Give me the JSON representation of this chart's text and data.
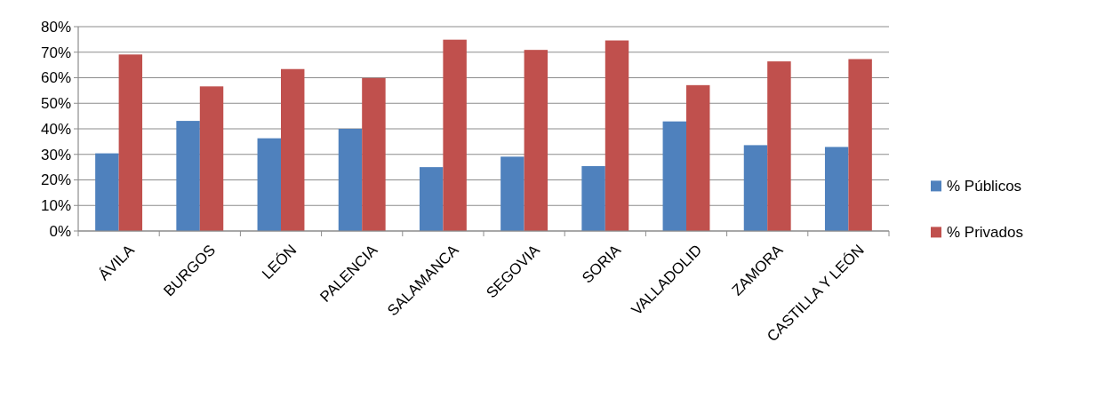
{
  "chart_data": {
    "type": "bar",
    "categories": [
      "ÁVILA",
      "BURGOS",
      "LEÓN",
      "PALENCIA",
      "SALAMANCA",
      "SEGOVIA",
      "SORIA",
      "VALLADOLID",
      "ZAMORA",
      "CASTILLA Y LEÓN"
    ],
    "series": [
      {
        "name": "% Públicos",
        "color": "#4f81bd",
        "values": [
          30.4,
          43.1,
          36.3,
          40.0,
          25.0,
          29.1,
          25.4,
          42.9,
          33.6,
          32.9
        ]
      },
      {
        "name": "% Privados",
        "color": "#c0504d",
        "values": [
          69.1,
          56.6,
          63.4,
          59.9,
          74.9,
          70.9,
          74.6,
          57.1,
          66.4,
          67.3
        ]
      }
    ],
    "ylim": [
      0,
      80
    ],
    "yticks": [
      {
        "value": 0,
        "label": "0%"
      },
      {
        "value": 10,
        "label": "10%"
      },
      {
        "value": 20,
        "label": "20%"
      },
      {
        "value": 30,
        "label": "30%"
      },
      {
        "value": 40,
        "label": "40%"
      },
      {
        "value": 50,
        "label": "50%"
      },
      {
        "value": 60,
        "label": "60%"
      },
      {
        "value": 70,
        "label": "70%"
      },
      {
        "value": 80,
        "label": "80%"
      }
    ],
    "grid": "y",
    "legend": "right"
  }
}
